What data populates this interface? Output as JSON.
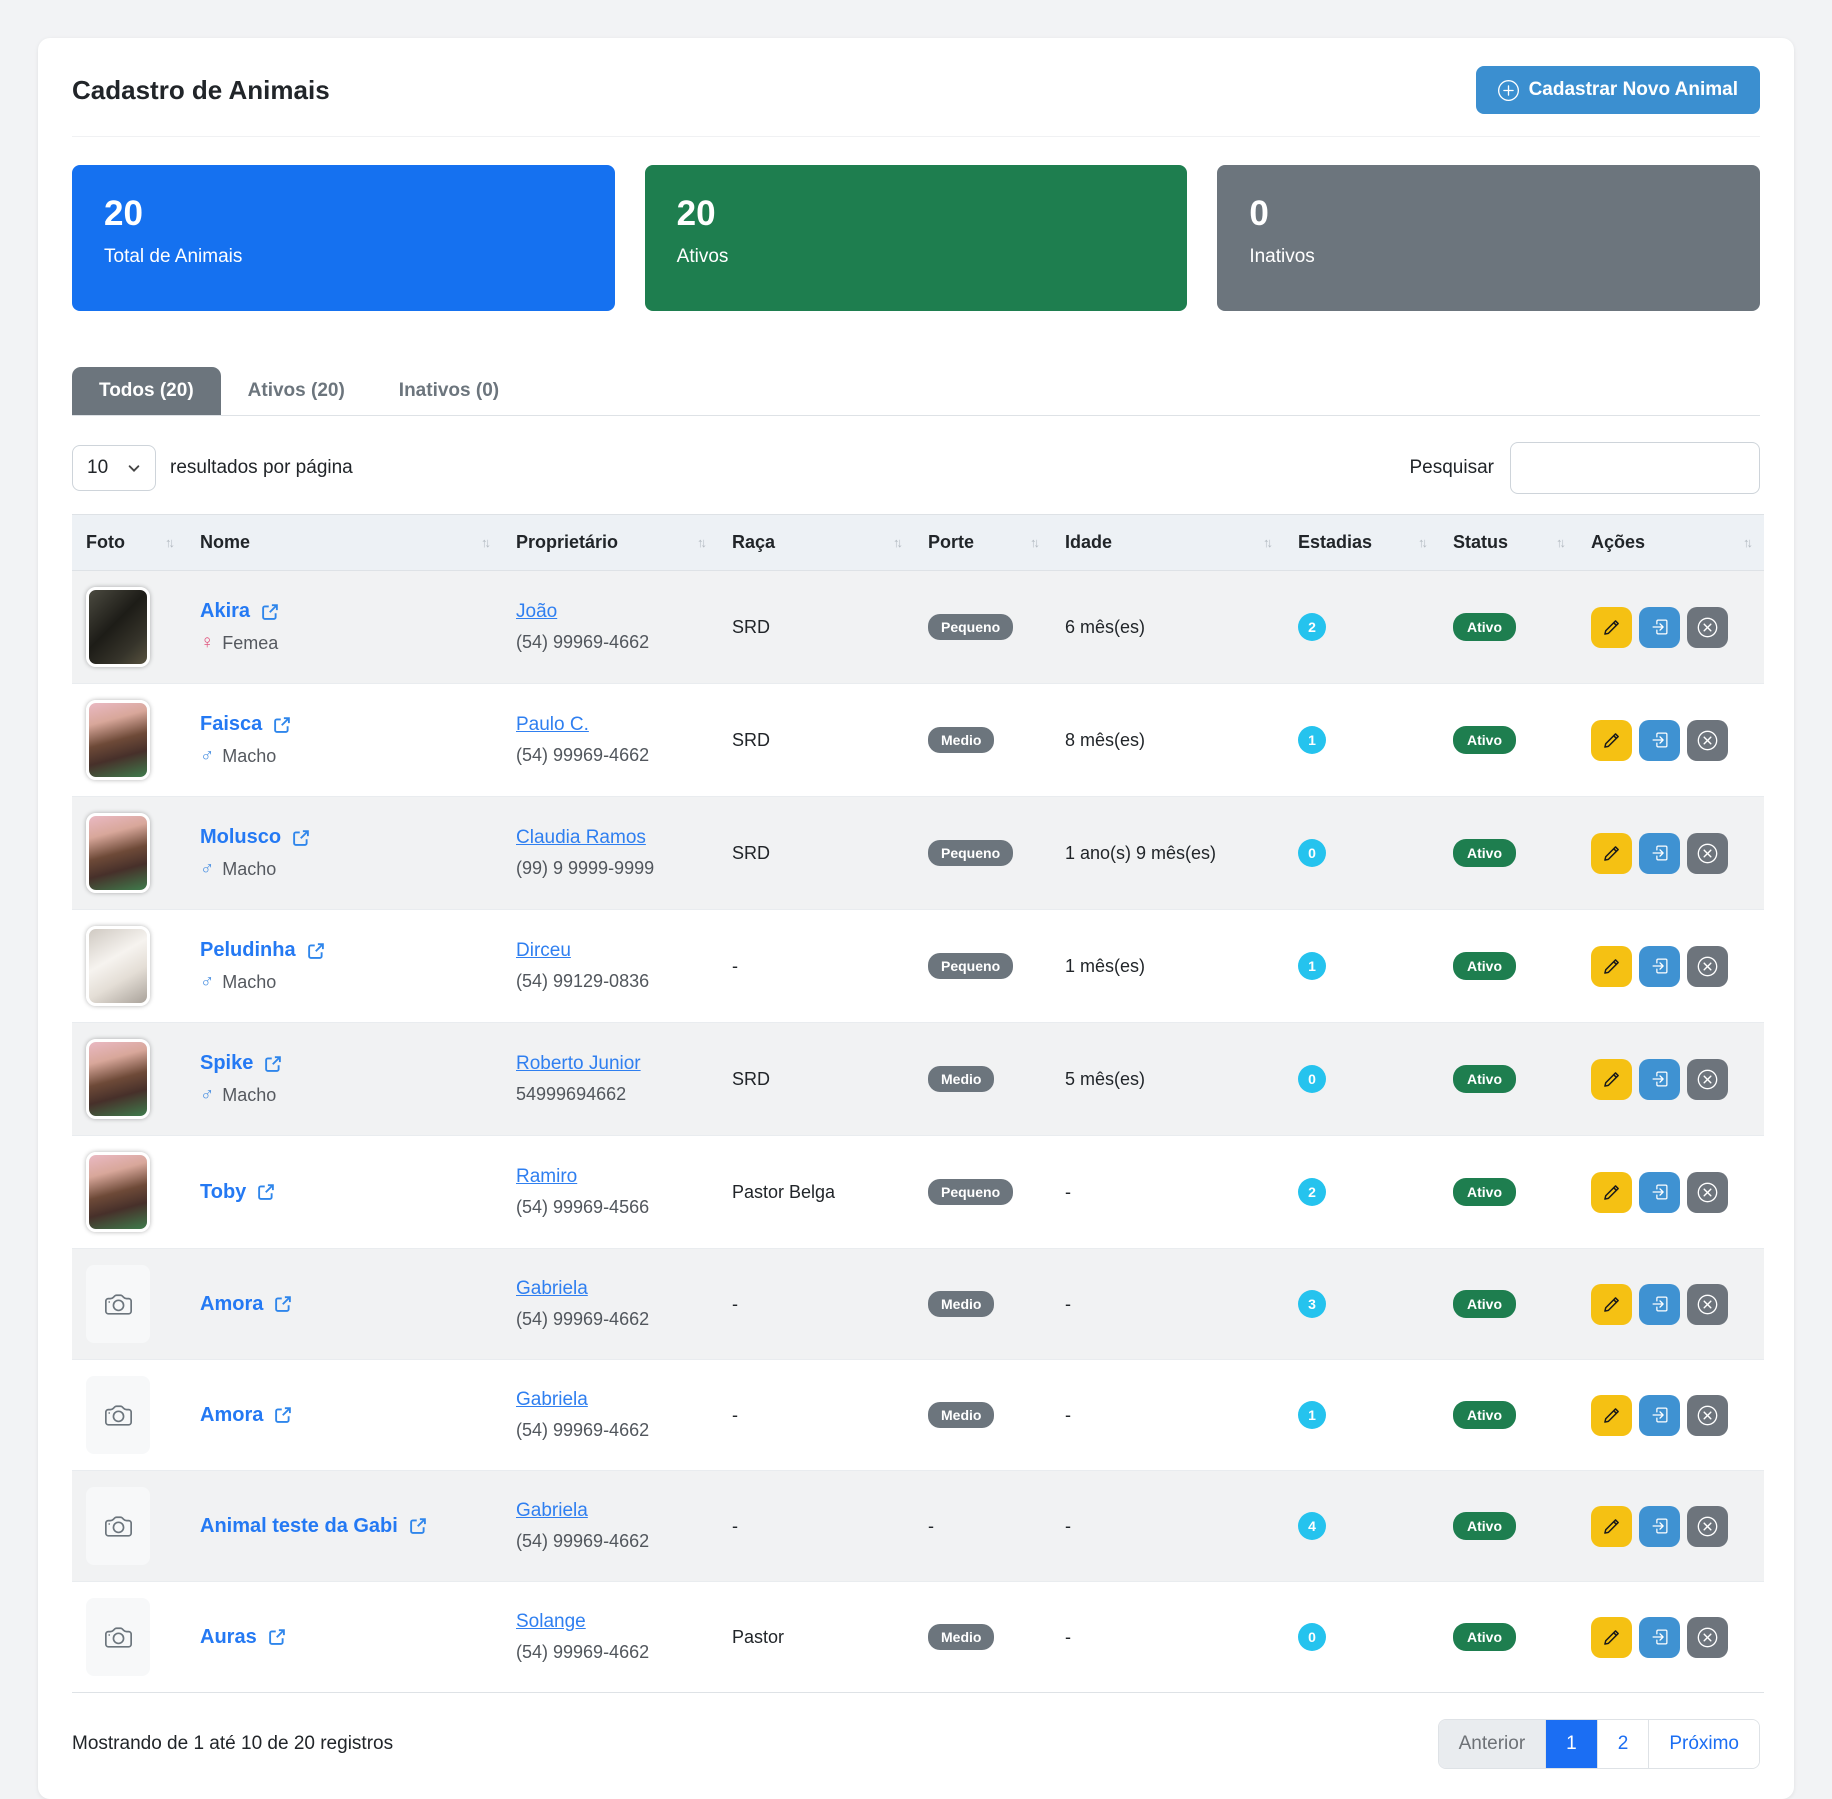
{
  "page": {
    "title": "Cadastro de Animais"
  },
  "header": {
    "new_animal_button": "Cadastrar Novo Animal"
  },
  "stats": [
    {
      "value": "20",
      "label": "Total de Animais",
      "color": "#1571f0"
    },
    {
      "value": "20",
      "label": "Ativos",
      "color": "#1e7e4f"
    },
    {
      "value": "0",
      "label": "Inativos",
      "color": "#6c757d"
    }
  ],
  "tabs": [
    {
      "label": "Todos (20)",
      "active": true
    },
    {
      "label": "Ativos (20)",
      "active": false
    },
    {
      "label": "Inativos (0)",
      "active": false
    }
  ],
  "controls": {
    "per_page_value": "10",
    "per_page_label": "resultados por página",
    "search_label": "Pesquisar",
    "search_value": ""
  },
  "table": {
    "columns": [
      "Foto",
      "Nome",
      "Proprietário",
      "Raça",
      "Porte",
      "Idade",
      "Estadias",
      "Status",
      "Ações"
    ],
    "rows": [
      {
        "photo": "dog-dark",
        "name": "Akira",
        "gender": "Femea",
        "owner": "João",
        "phone": "(54) 99969-4662",
        "breed": "SRD",
        "size": "Pequeno",
        "age": "6 mês(es)",
        "stays": "2",
        "status": "Ativo"
      },
      {
        "photo": "puppy-brown",
        "name": "Faisca",
        "gender": "Macho",
        "owner": "Paulo C.",
        "phone": "(54) 99969-4662",
        "breed": "SRD",
        "size": "Medio",
        "age": "8 mês(es)",
        "stays": "1",
        "status": "Ativo"
      },
      {
        "photo": "puppy-brown",
        "name": "Molusco",
        "gender": "Macho",
        "owner": "Claudia Ramos",
        "phone": "(99) 9 9999-9999",
        "breed": "SRD",
        "size": "Pequeno",
        "age": "1 ano(s) 9 mês(es)",
        "stays": "0",
        "status": "Ativo"
      },
      {
        "photo": "cat-white",
        "name": "Peludinha",
        "gender": "Macho",
        "owner": "Dirceu",
        "phone": "(54) 99129-0836",
        "breed": "-",
        "size": "Pequeno",
        "age": "1 mês(es)",
        "stays": "1",
        "status": "Ativo"
      },
      {
        "photo": "puppy-brown",
        "name": "Spike",
        "gender": "Macho",
        "owner": "Roberto Junior",
        "phone": "54999694662",
        "breed": "SRD",
        "size": "Medio",
        "age": "5 mês(es)",
        "stays": "0",
        "status": "Ativo"
      },
      {
        "photo": "puppy-brown",
        "name": "Toby",
        "gender": null,
        "owner": "Ramiro",
        "phone": "(54) 99969-4566",
        "breed": "Pastor Belga",
        "size": "Pequeno",
        "age": "-",
        "stays": "2",
        "status": "Ativo"
      },
      {
        "photo": "placeholder",
        "name": "Amora",
        "gender": null,
        "owner": "Gabriela",
        "phone": "(54) 99969-4662",
        "breed": "-",
        "size": "Medio",
        "age": "-",
        "stays": "3",
        "status": "Ativo"
      },
      {
        "photo": "placeholder",
        "name": "Amora",
        "gender": null,
        "owner": "Gabriela",
        "phone": "(54) 99969-4662",
        "breed": "-",
        "size": "Medio",
        "age": "-",
        "stays": "1",
        "status": "Ativo"
      },
      {
        "photo": "placeholder",
        "name": "Animal teste da Gabi",
        "gender": null,
        "owner": "Gabriela",
        "phone": "(54) 99969-4662",
        "breed": "-",
        "size": "-",
        "age": "-",
        "stays": "4",
        "status": "Ativo"
      },
      {
        "photo": "placeholder",
        "name": "Auras",
        "gender": null,
        "owner": "Solange",
        "phone": "(54) 99969-4662",
        "breed": "Pastor",
        "size": "Medio",
        "age": "-",
        "stays": "0",
        "status": "Ativo"
      }
    ]
  },
  "footer": {
    "showing": "Mostrando de 1 até 10 de 20 registros",
    "pagination": {
      "prev": "Anterior",
      "pages": [
        "1",
        "2"
      ],
      "active_page": "1",
      "next": "Próximo"
    }
  },
  "icons": {
    "add": "plus-circle",
    "sort": "arrow-up-down",
    "external_link": "box-arrow-up-right",
    "female_symbol": "♀",
    "male_symbol": "♂",
    "edit": "pencil",
    "checkin": "box-arrow-in-right",
    "deactivate": "x-circle",
    "photo_placeholder": "camera",
    "select_caret": "chevron-down"
  },
  "colors": {
    "primary_blue": "#1571f0",
    "success_green": "#1e7e4f",
    "secondary_gray": "#6c757d",
    "info_cyan": "#25c3ee",
    "warning_yellow": "#f5c113",
    "action_blue": "#3f92d2",
    "header_button_blue": "#3b8fd0",
    "link_blue": "#2479f3",
    "pagination_blue": "#1b6ef3"
  }
}
